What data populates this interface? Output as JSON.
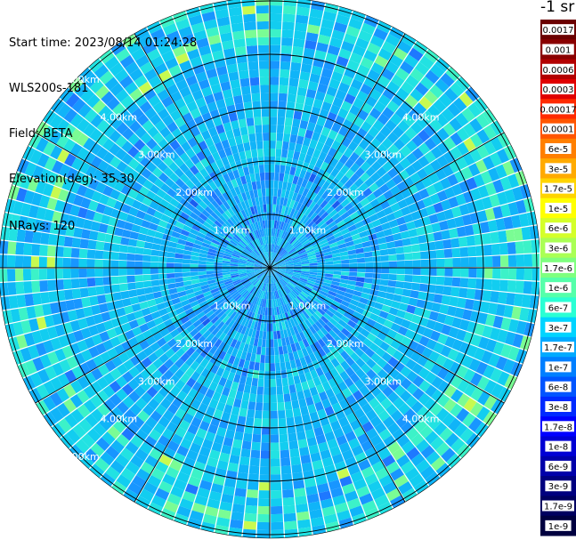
{
  "info": {
    "start_time": "Start time: 2023/08/14 01:24:28",
    "instrument": "WLS200s-181",
    "field": "Field: BETA",
    "elevation": "Elevation(deg): 35.30",
    "nrays": "NRays: 120"
  },
  "ppi": {
    "rays": 120,
    "range_rings_km": [
      1,
      2,
      3,
      4,
      5
    ],
    "ring_label_text": [
      "1.00km",
      "2.00km",
      "3.00km",
      "4.00km",
      "5.00km"
    ],
    "spoke_count": 12
  },
  "colorbar": {
    "title": "-1 sr",
    "labels": [
      "0.0017",
      "0.001",
      "0.0006",
      "0.0003",
      "0.00017",
      "0.0001",
      "6e-5",
      "3e-5",
      "1.7e-5",
      "1e-5",
      "6e-6",
      "3e-6",
      "1.7e-6",
      "1e-6",
      "6e-7",
      "3e-7",
      "1.7e-7",
      "1e-7",
      "6e-8",
      "3e-8",
      "1.7e-8",
      "1e-8",
      "6e-9",
      "3e-9",
      "1.7e-9",
      "1e-9"
    ],
    "colors": [
      "#6b0000",
      "#8a0000",
      "#b30000",
      "#e00000",
      "#ff2a00",
      "#ff5500",
      "#ff7f00",
      "#ffaa00",
      "#ffd400",
      "#ffff00",
      "#d4ff2a",
      "#aaff55",
      "#7fff7f",
      "#55ffaa",
      "#2affd4",
      "#00d4ff",
      "#00aaff",
      "#007fff",
      "#0055ff",
      "#002aff",
      "#0000ff",
      "#0000d4",
      "#0000aa",
      "#00007f",
      "#000060",
      "#000040"
    ]
  }
}
